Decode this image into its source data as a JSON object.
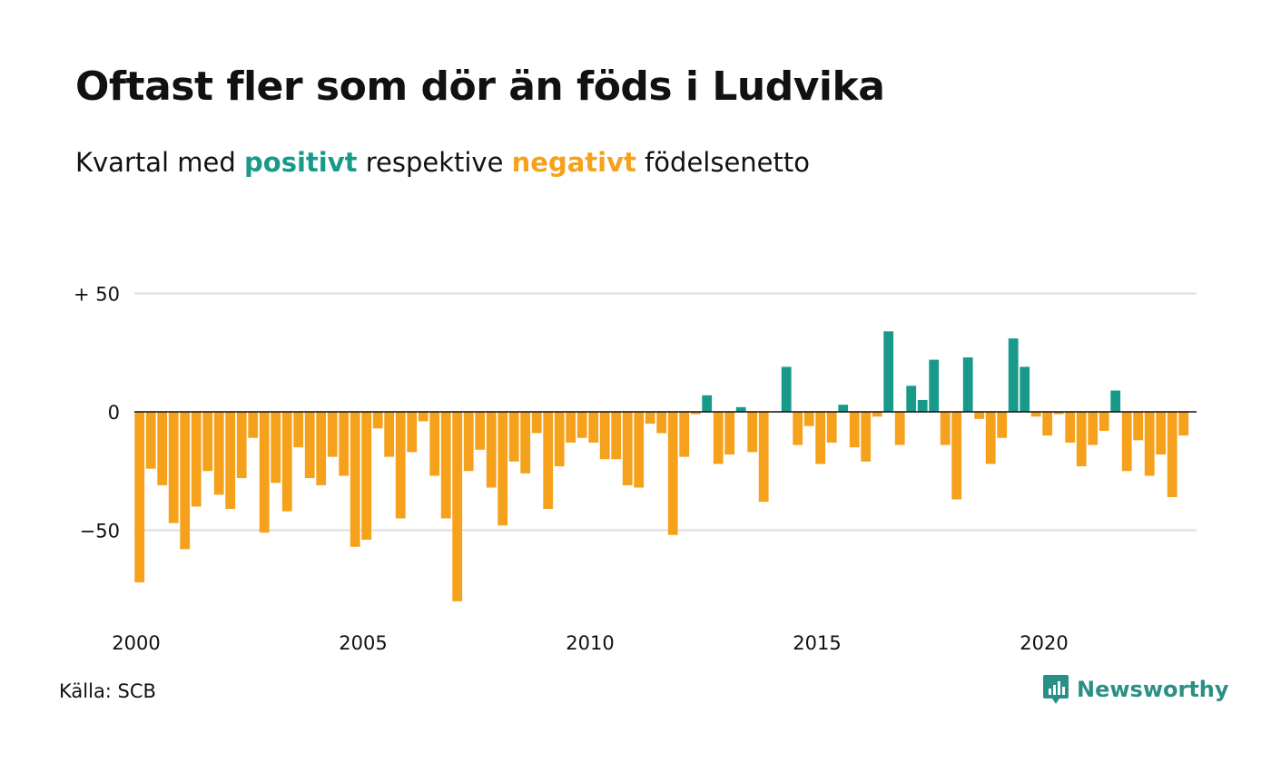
{
  "header": {
    "title": "Oftast fler som dör än föds i Ludvika",
    "subtitle_pre": "Kvartal med ",
    "subtitle_pos": "positivt",
    "subtitle_mid": " respektive ",
    "subtitle_neg": "negativt",
    "subtitle_post": " födelsenetto"
  },
  "footer": {
    "source": "Källa: SCB",
    "brand": "Newsworthy"
  },
  "colors": {
    "positive": "#18998a",
    "negative": "#f5a11b",
    "grid": "#dddddd",
    "brand": "#2a8f85"
  },
  "chart_data": {
    "type": "bar",
    "title": "Oftast fler som dör än föds i Ludvika",
    "subtitle": "Kvartal med positivt respektive negativt födelsenetto",
    "x_start_year": 2000,
    "periods_per_year": 4,
    "ylim": [
      -80,
      50
    ],
    "y_ticks": [
      {
        "value": 50,
        "label": "+ 50"
      },
      {
        "value": 0,
        "label": "0"
      },
      {
        "value": -50,
        "label": "−50"
      }
    ],
    "x_ticks": [
      "2000",
      "2005",
      "2010",
      "2015",
      "2020"
    ],
    "grid": true,
    "values": [
      -72,
      -24,
      -31,
      -47,
      -58,
      -40,
      -25,
      -35,
      -41,
      -28,
      -11,
      -51,
      -30,
      -42,
      -15,
      -28,
      -31,
      -19,
      -27,
      -57,
      -54,
      -7,
      -19,
      -45,
      -17,
      -4,
      -27,
      -45,
      -80,
      -25,
      -16,
      -32,
      -48,
      -21,
      -26,
      -9,
      -41,
      -23,
      -13,
      -11,
      -13,
      -20,
      -20,
      -31,
      -32,
      -5,
      -9,
      -52,
      -19,
      -1,
      7,
      -22,
      -18,
      2,
      -17,
      -38,
      0,
      19,
      -14,
      -6,
      -22,
      -13,
      3,
      -15,
      -21,
      -2,
      34,
      -14,
      11,
      5,
      22,
      -14,
      -37,
      23,
      -3,
      -22,
      -11,
      31,
      19,
      -2,
      -10,
      -1,
      -13,
      -23,
      -14,
      -8,
      9,
      -25,
      -12,
      -27,
      -18,
      -36,
      -10
    ]
  }
}
